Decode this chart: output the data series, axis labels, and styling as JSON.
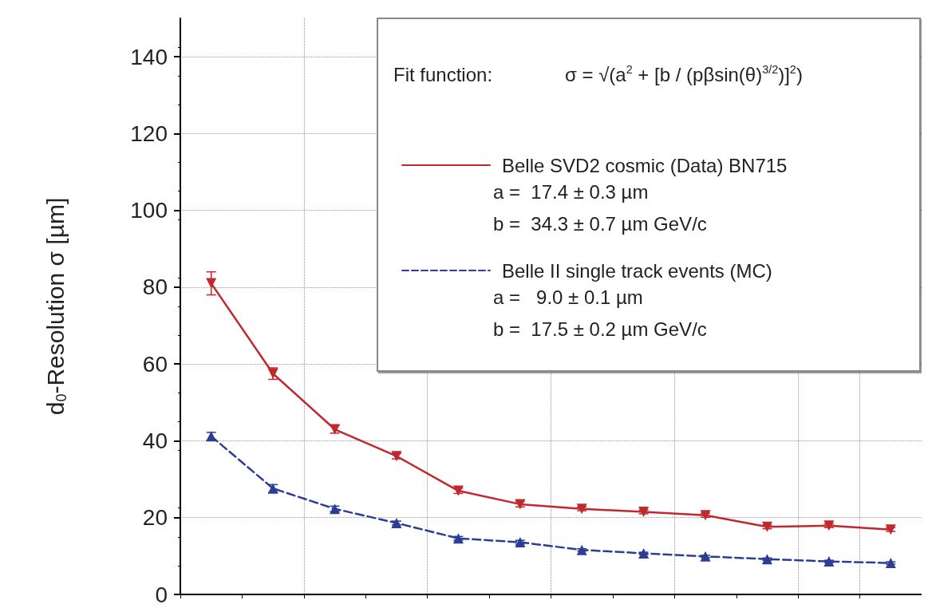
{
  "chart_data": {
    "type": "line",
    "ylabel": "d$_{0}$-Resolution σ [µm]",
    "categories": [
      null,
      null,
      null,
      null,
      null,
      null,
      null,
      null,
      null,
      null,
      null,
      null
    ],
    "series": [
      {
        "name": "Belle SVD2 cosmic (Data) BN715",
        "color": "#c0282e",
        "line_style": "solid",
        "marker": "triangle",
        "values": [
          81,
          57.5,
          43,
          36,
          27,
          23.5,
          22.3,
          21.5,
          20.6,
          17.6,
          17.9,
          16.9
        ],
        "errors": [
          3,
          1.5,
          1,
          0.7,
          0.7,
          0.7,
          0.5,
          0.5,
          0.5,
          0.5,
          0.5,
          0.5
        ]
      },
      {
        "name": "Belle II single track events (MC)",
        "color": "#2b3d96",
        "line_style": "dashed",
        "marker": "triangle",
        "values": [
          41.2,
          27.6,
          22.3,
          18.6,
          14.6,
          13.6,
          11.6,
          10.7,
          9.9,
          9.2,
          8.6,
          8.2
        ],
        "errors": [
          1,
          1,
          0.7,
          0.5,
          0.5,
          0.5,
          0.3,
          0.3,
          0.3,
          0.3,
          0.3,
          0.3
        ]
      }
    ],
    "ylim": [
      0,
      150
    ],
    "yticks": [
      0,
      20,
      40,
      60,
      80,
      100,
      120,
      140
    ],
    "grid": true,
    "legend": "top right",
    "tick_labels": "y",
    "annotations": [
      "Fit function:",
      "σ = √(a$^{2}$ + [b / (pβsin(θ)$^{3/2}$)]$^{2}$)",
      "a =  17.4 ± 0.3 µm",
      "b =  34.3 ± 0.7 µm GeV/c",
      "a =   9.0 ± 0.1 µm",
      "b =  17.5 ± 0.2 µm GeV/c"
    ]
  }
}
